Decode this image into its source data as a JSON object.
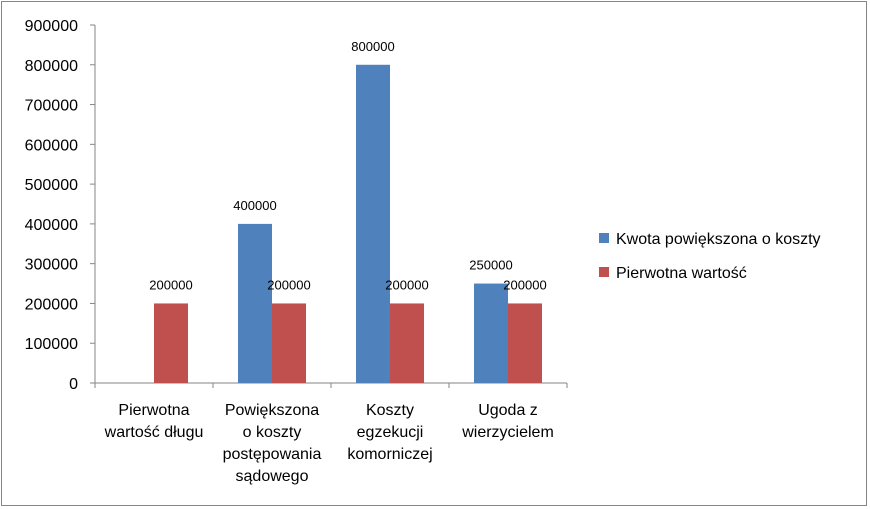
{
  "chart_data": {
    "type": "bar",
    "categories": [
      [
        "Pierwotna",
        "wartość długu"
      ],
      [
        "Powiększona",
        "o koszty",
        "postępowania",
        "sądowego"
      ],
      [
        "Koszty",
        "egzekucji",
        "komorniczej"
      ],
      [
        "Ugoda z",
        "wierzycielem"
      ]
    ],
    "series": [
      {
        "name": "Kwota powiększona o koszty",
        "color": "#4F81BD",
        "values": [
          null,
          400000,
          800000,
          250000
        ]
      },
      {
        "name": "Pierwotna wartość",
        "color": "#C0504D",
        "values": [
          200000,
          200000,
          200000,
          200000
        ]
      }
    ],
    "ylim": [
      0,
      900000
    ],
    "yticks": [
      0,
      100000,
      200000,
      300000,
      400000,
      500000,
      600000,
      700000,
      800000,
      900000
    ],
    "data_labels": true,
    "grid": false,
    "legend": "right"
  }
}
